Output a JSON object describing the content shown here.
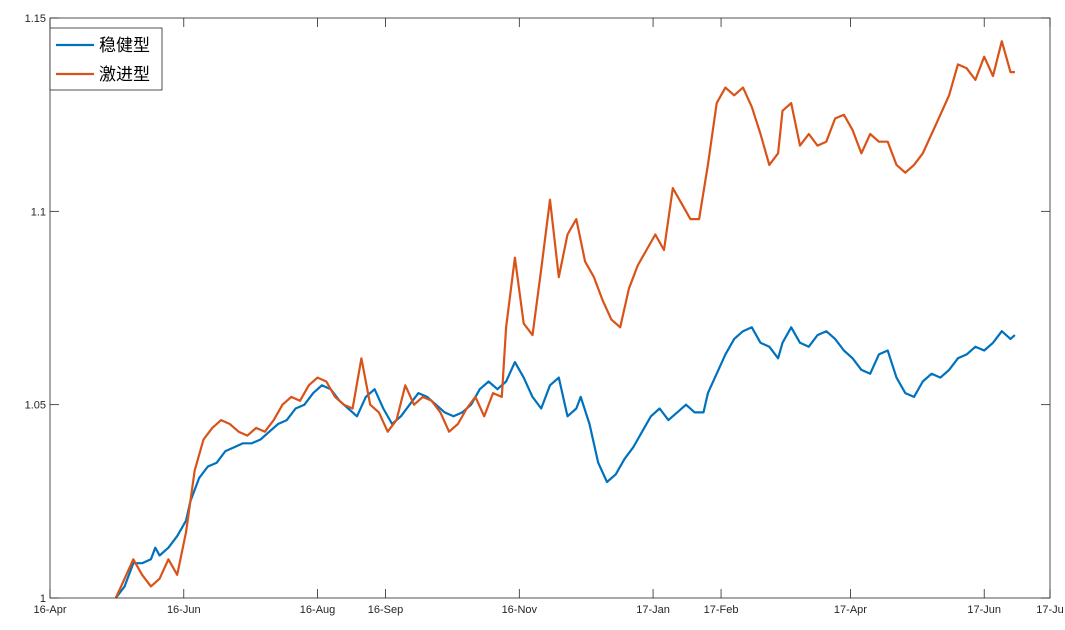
{
  "chart_data": {
    "type": "line",
    "title": "",
    "xlabel": "",
    "ylabel": "",
    "xlim": [
      "2016-04-01",
      "2017-07-01"
    ],
    "ylim": [
      1.0,
      1.15
    ],
    "grid": false,
    "legend_position": "top-left",
    "x_ticks": [
      {
        "label": "16-Apr",
        "date": "2016-04-01"
      },
      {
        "label": "16-Jun",
        "date": "2016-06-01"
      },
      {
        "label": "16-Aug",
        "date": "2016-08-01"
      },
      {
        "label": "16-Sep",
        "date": "2016-09-01"
      },
      {
        "label": "16-Nov",
        "date": "2016-11-01"
      },
      {
        "label": "17-Jan",
        "date": "2017-01-01"
      },
      {
        "label": "17-Feb",
        "date": "2017-02-01"
      },
      {
        "label": "17-Apr",
        "date": "2017-04-01"
      },
      {
        "label": "17-Jun",
        "date": "2017-06-01"
      },
      {
        "label": "17-Ju",
        "date": "2017-07-01"
      }
    ],
    "y_ticks": [
      {
        "label": "1",
        "value": 1.0
      },
      {
        "label": "1.05",
        "value": 1.05
      },
      {
        "label": "1.1",
        "value": 1.1
      },
      {
        "label": "1.15",
        "value": 1.15
      }
    ],
    "series": [
      {
        "name": "稳健型",
        "color": "#0072BD",
        "points": [
          [
            "2016-05-01",
            1.0
          ],
          [
            "2016-05-05",
            1.003
          ],
          [
            "2016-05-09",
            1.009
          ],
          [
            "2016-05-13",
            1.009
          ],
          [
            "2016-05-17",
            1.01
          ],
          [
            "2016-05-19",
            1.013
          ],
          [
            "2016-05-21",
            1.011
          ],
          [
            "2016-05-25",
            1.013
          ],
          [
            "2016-05-29",
            1.016
          ],
          [
            "2016-06-02",
            1.02
          ],
          [
            "2016-06-04",
            1.025
          ],
          [
            "2016-06-08",
            1.031
          ],
          [
            "2016-06-12",
            1.034
          ],
          [
            "2016-06-16",
            1.035
          ],
          [
            "2016-06-20",
            1.038
          ],
          [
            "2016-06-24",
            1.039
          ],
          [
            "2016-06-28",
            1.04
          ],
          [
            "2016-07-02",
            1.04
          ],
          [
            "2016-07-06",
            1.041
          ],
          [
            "2016-07-10",
            1.043
          ],
          [
            "2016-07-14",
            1.045
          ],
          [
            "2016-07-18",
            1.046
          ],
          [
            "2016-07-22",
            1.049
          ],
          [
            "2016-07-26",
            1.05
          ],
          [
            "2016-07-30",
            1.053
          ],
          [
            "2016-08-03",
            1.055
          ],
          [
            "2016-08-07",
            1.054
          ],
          [
            "2016-08-11",
            1.051
          ],
          [
            "2016-08-15",
            1.049
          ],
          [
            "2016-08-19",
            1.047
          ],
          [
            "2016-08-23",
            1.052
          ],
          [
            "2016-08-27",
            1.054
          ],
          [
            "2016-08-31",
            1.049
          ],
          [
            "2016-09-04",
            1.045
          ],
          [
            "2016-09-08",
            1.047
          ],
          [
            "2016-09-12",
            1.05
          ],
          [
            "2016-09-16",
            1.053
          ],
          [
            "2016-09-20",
            1.052
          ],
          [
            "2016-09-24",
            1.05
          ],
          [
            "2016-09-28",
            1.048
          ],
          [
            "2016-10-02",
            1.047
          ],
          [
            "2016-10-06",
            1.048
          ],
          [
            "2016-10-10",
            1.05
          ],
          [
            "2016-10-14",
            1.054
          ],
          [
            "2016-10-18",
            1.056
          ],
          [
            "2016-10-22",
            1.054
          ],
          [
            "2016-10-26",
            1.056
          ],
          [
            "2016-10-30",
            1.061
          ],
          [
            "2016-11-03",
            1.057
          ],
          [
            "2016-11-07",
            1.052
          ],
          [
            "2016-11-11",
            1.049
          ],
          [
            "2016-11-15",
            1.055
          ],
          [
            "2016-11-19",
            1.057
          ],
          [
            "2016-11-23",
            1.047
          ],
          [
            "2016-11-27",
            1.049
          ],
          [
            "2016-11-29",
            1.052
          ],
          [
            "2016-12-03",
            1.045
          ],
          [
            "2016-12-07",
            1.035
          ],
          [
            "2016-12-11",
            1.03
          ],
          [
            "2016-12-15",
            1.032
          ],
          [
            "2016-12-19",
            1.036
          ],
          [
            "2016-12-23",
            1.039
          ],
          [
            "2016-12-27",
            1.043
          ],
          [
            "2016-12-31",
            1.047
          ],
          [
            "2017-01-04",
            1.049
          ],
          [
            "2017-01-08",
            1.046
          ],
          [
            "2017-01-12",
            1.048
          ],
          [
            "2017-01-16",
            1.05
          ],
          [
            "2017-01-20",
            1.048
          ],
          [
            "2017-01-24",
            1.048
          ],
          [
            "2017-01-26",
            1.053
          ],
          [
            "2017-01-30",
            1.058
          ],
          [
            "2017-02-03",
            1.063
          ],
          [
            "2017-02-07",
            1.067
          ],
          [
            "2017-02-11",
            1.069
          ],
          [
            "2017-02-15",
            1.07
          ],
          [
            "2017-02-19",
            1.066
          ],
          [
            "2017-02-23",
            1.065
          ],
          [
            "2017-02-27",
            1.062
          ],
          [
            "2017-03-01",
            1.066
          ],
          [
            "2017-03-05",
            1.07
          ],
          [
            "2017-03-09",
            1.066
          ],
          [
            "2017-03-13",
            1.065
          ],
          [
            "2017-03-17",
            1.068
          ],
          [
            "2017-03-21",
            1.069
          ],
          [
            "2017-03-25",
            1.067
          ],
          [
            "2017-03-29",
            1.064
          ],
          [
            "2017-04-02",
            1.062
          ],
          [
            "2017-04-06",
            1.059
          ],
          [
            "2017-04-10",
            1.058
          ],
          [
            "2017-04-14",
            1.063
          ],
          [
            "2017-04-18",
            1.064
          ],
          [
            "2017-04-22",
            1.057
          ],
          [
            "2017-04-26",
            1.053
          ],
          [
            "2017-04-30",
            1.052
          ],
          [
            "2017-05-04",
            1.056
          ],
          [
            "2017-05-08",
            1.058
          ],
          [
            "2017-05-12",
            1.057
          ],
          [
            "2017-05-16",
            1.059
          ],
          [
            "2017-05-20",
            1.062
          ],
          [
            "2017-05-24",
            1.063
          ],
          [
            "2017-05-28",
            1.065
          ],
          [
            "2017-06-01",
            1.064
          ],
          [
            "2017-06-05",
            1.066
          ],
          [
            "2017-06-09",
            1.069
          ],
          [
            "2017-06-13",
            1.067
          ],
          [
            "2017-06-15",
            1.068
          ]
        ]
      },
      {
        "name": "激进型",
        "color": "#D95319",
        "points": [
          [
            "2016-05-01",
            1.0
          ],
          [
            "2016-05-05",
            1.005
          ],
          [
            "2016-05-09",
            1.01
          ],
          [
            "2016-05-13",
            1.006
          ],
          [
            "2016-05-17",
            1.003
          ],
          [
            "2016-05-21",
            1.005
          ],
          [
            "2016-05-25",
            1.01
          ],
          [
            "2016-05-29",
            1.006
          ],
          [
            "2016-06-02",
            1.017
          ],
          [
            "2016-06-06",
            1.033
          ],
          [
            "2016-06-10",
            1.041
          ],
          [
            "2016-06-14",
            1.044
          ],
          [
            "2016-06-18",
            1.046
          ],
          [
            "2016-06-22",
            1.045
          ],
          [
            "2016-06-26",
            1.043
          ],
          [
            "2016-06-30",
            1.042
          ],
          [
            "2016-07-04",
            1.044
          ],
          [
            "2016-07-08",
            1.043
          ],
          [
            "2016-07-12",
            1.046
          ],
          [
            "2016-07-16",
            1.05
          ],
          [
            "2016-07-20",
            1.052
          ],
          [
            "2016-07-24",
            1.051
          ],
          [
            "2016-07-28",
            1.055
          ],
          [
            "2016-08-01",
            1.057
          ],
          [
            "2016-08-05",
            1.056
          ],
          [
            "2016-08-09",
            1.052
          ],
          [
            "2016-08-13",
            1.05
          ],
          [
            "2016-08-17",
            1.049
          ],
          [
            "2016-08-21",
            1.062
          ],
          [
            "2016-08-25",
            1.05
          ],
          [
            "2016-08-29",
            1.048
          ],
          [
            "2016-09-02",
            1.043
          ],
          [
            "2016-09-06",
            1.046
          ],
          [
            "2016-09-10",
            1.055
          ],
          [
            "2016-09-14",
            1.05
          ],
          [
            "2016-09-18",
            1.052
          ],
          [
            "2016-09-22",
            1.051
          ],
          [
            "2016-09-26",
            1.048
          ],
          [
            "2016-09-30",
            1.043
          ],
          [
            "2016-10-04",
            1.045
          ],
          [
            "2016-10-08",
            1.049
          ],
          [
            "2016-10-12",
            1.052
          ],
          [
            "2016-10-16",
            1.047
          ],
          [
            "2016-10-20",
            1.053
          ],
          [
            "2016-10-24",
            1.052
          ],
          [
            "2016-10-26",
            1.07
          ],
          [
            "2016-10-30",
            1.088
          ],
          [
            "2016-11-03",
            1.071
          ],
          [
            "2016-11-07",
            1.068
          ],
          [
            "2016-11-11",
            1.085
          ],
          [
            "2016-11-15",
            1.103
          ],
          [
            "2016-11-19",
            1.083
          ],
          [
            "2016-11-23",
            1.094
          ],
          [
            "2016-11-27",
            1.098
          ],
          [
            "2016-12-01",
            1.087
          ],
          [
            "2016-12-05",
            1.083
          ],
          [
            "2016-12-09",
            1.077
          ],
          [
            "2016-12-13",
            1.072
          ],
          [
            "2016-12-17",
            1.07
          ],
          [
            "2016-12-21",
            1.08
          ],
          [
            "2016-12-25",
            1.086
          ],
          [
            "2016-12-29",
            1.09
          ],
          [
            "2017-01-02",
            1.094
          ],
          [
            "2017-01-06",
            1.09
          ],
          [
            "2017-01-10",
            1.106
          ],
          [
            "2017-01-14",
            1.102
          ],
          [
            "2017-01-18",
            1.098
          ],
          [
            "2017-01-22",
            1.098
          ],
          [
            "2017-01-26",
            1.112
          ],
          [
            "2017-01-30",
            1.128
          ],
          [
            "2017-02-03",
            1.132
          ],
          [
            "2017-02-07",
            1.13
          ],
          [
            "2017-02-11",
            1.132
          ],
          [
            "2017-02-15",
            1.127
          ],
          [
            "2017-02-19",
            1.12
          ],
          [
            "2017-02-23",
            1.112
          ],
          [
            "2017-02-27",
            1.115
          ],
          [
            "2017-03-01",
            1.126
          ],
          [
            "2017-03-05",
            1.128
          ],
          [
            "2017-03-09",
            1.117
          ],
          [
            "2017-03-13",
            1.12
          ],
          [
            "2017-03-17",
            1.117
          ],
          [
            "2017-03-21",
            1.118
          ],
          [
            "2017-03-25",
            1.124
          ],
          [
            "2017-03-29",
            1.125
          ],
          [
            "2017-04-02",
            1.121
          ],
          [
            "2017-04-06",
            1.115
          ],
          [
            "2017-04-10",
            1.12
          ],
          [
            "2017-04-14",
            1.118
          ],
          [
            "2017-04-18",
            1.118
          ],
          [
            "2017-04-22",
            1.112
          ],
          [
            "2017-04-26",
            1.11
          ],
          [
            "2017-04-30",
            1.112
          ],
          [
            "2017-05-04",
            1.115
          ],
          [
            "2017-05-08",
            1.12
          ],
          [
            "2017-05-12",
            1.125
          ],
          [
            "2017-05-16",
            1.13
          ],
          [
            "2017-05-20",
            1.138
          ],
          [
            "2017-05-24",
            1.137
          ],
          [
            "2017-05-28",
            1.134
          ],
          [
            "2017-06-01",
            1.14
          ],
          [
            "2017-06-05",
            1.135
          ],
          [
            "2017-06-09",
            1.144
          ],
          [
            "2017-06-13",
            1.136
          ],
          [
            "2017-06-15",
            1.136
          ]
        ]
      }
    ]
  }
}
